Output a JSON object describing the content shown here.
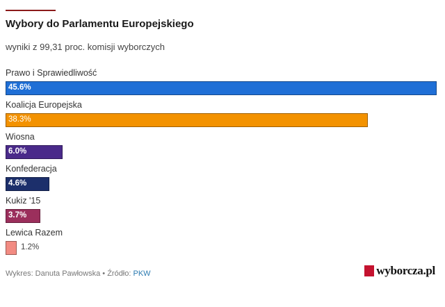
{
  "chart_data": {
    "type": "bar",
    "orientation": "horizontal",
    "title": "Wybory do Parlamentu Europejskiego",
    "subtitle": "wyniki z 99,31 proc. komisji wyborczych",
    "categories": [
      "Prawo i Sprawiedliwość",
      "Koalicja Europejska",
      "Wiosna",
      "Konfederacja",
      "Kukiz '15",
      "Lewica Razem"
    ],
    "values": [
      45.6,
      38.3,
      6.0,
      4.6,
      3.7,
      1.2
    ],
    "value_labels": [
      "45.6%",
      "38.3%",
      "6.0%",
      "4.6%",
      "3.7%",
      "1.2%"
    ],
    "colors": [
      "#1f6fd6",
      "#f39200",
      "#4a2a8a",
      "#1c2f6b",
      "#9b2f5c",
      "#f28b82"
    ],
    "xlim": [
      0,
      45.6
    ],
    "grid": false,
    "legend": "none"
  },
  "footer": {
    "credit": "Wykres: Danuta Pawłowska • Źródło: ",
    "source": "PKW"
  },
  "logo": {
    "text": "wyborcza.pl",
    "color": "#c4122f"
  }
}
